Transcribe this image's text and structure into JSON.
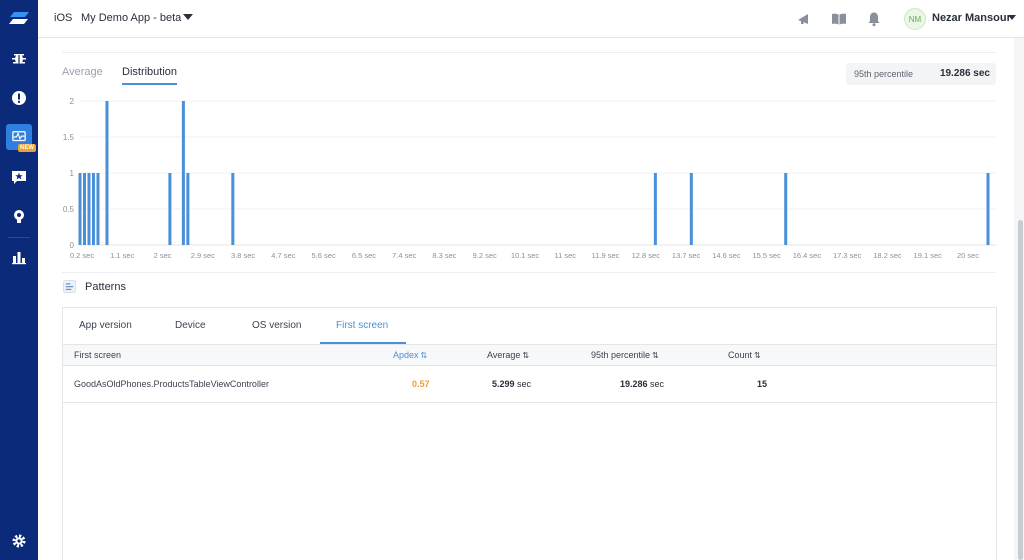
{
  "header": {
    "platform": "iOS",
    "app_name": "My Demo App - beta",
    "user_initials": "NM",
    "user_name": "Nezar Mansour",
    "icons": [
      "announcement-icon",
      "docs-book-icon",
      "notifications-bell-icon"
    ]
  },
  "sidebar": {
    "items": [
      {
        "name": "bugs",
        "icon": "bug-icon"
      },
      {
        "name": "crashes",
        "icon": "exclamation-icon"
      },
      {
        "name": "apm",
        "icon": "performance-monitor-icon",
        "badge": "new",
        "active": true
      },
      {
        "name": "feature-requests",
        "icon": "star-chat-icon"
      },
      {
        "name": "surveys",
        "icon": "lightbulb-icon"
      },
      {
        "name": "analytics",
        "icon": "bar-chart-icon"
      },
      {
        "name": "settings",
        "icon": "gear-icon"
      }
    ]
  },
  "tabs": {
    "average": "Average",
    "distribution": "Distribution"
  },
  "percentile": {
    "label": "95th percentile",
    "value": "19.286 sec"
  },
  "chart_data": {
    "type": "bar",
    "title": "",
    "xlabel": "",
    "ylabel": "",
    "ylim": [
      0,
      2
    ],
    "y_ticks": [
      "0",
      "0.5",
      "1",
      "1.5",
      "2"
    ],
    "x_tick_labels": [
      "0.2 sec",
      "1.1 sec",
      "2 sec",
      "2.9 sec",
      "3.8 sec",
      "4.7 sec",
      "5.6 sec",
      "6.5 sec",
      "7.4 sec",
      "8.3 sec",
      "9.2 sec",
      "10.1 sec",
      "11 sec",
      "11.9 sec",
      "12.8 sec",
      "13.7 sec",
      "14.6 sec",
      "15.5 sec",
      "16.4 sec",
      "17.3 sec",
      "18.2 sec",
      "19.1 sec",
      "20 sec"
    ],
    "x_range": [
      0.2,
      20.4
    ],
    "grid": true,
    "bars": [
      {
        "x": 0.2,
        "value": 1
      },
      {
        "x": 0.3,
        "value": 1
      },
      {
        "x": 0.4,
        "value": 1
      },
      {
        "x": 0.5,
        "value": 1
      },
      {
        "x": 0.6,
        "value": 1
      },
      {
        "x": 0.8,
        "value": 2
      },
      {
        "x": 2.2,
        "value": 1
      },
      {
        "x": 2.5,
        "value": 2
      },
      {
        "x": 2.6,
        "value": 1
      },
      {
        "x": 3.6,
        "value": 1
      },
      {
        "x": 13.0,
        "value": 1
      },
      {
        "x": 13.8,
        "value": 1
      },
      {
        "x": 15.9,
        "value": 1
      },
      {
        "x": 20.4,
        "value": 1
      }
    ]
  },
  "patterns": {
    "title": "Patterns",
    "tabs": [
      "App version",
      "Device",
      "OS version",
      "First screen"
    ],
    "active_tab": 3,
    "columns": {
      "first_screen": "First screen",
      "apdex": "Apdex",
      "average": "Average",
      "p95": "95th percentile",
      "count": "Count"
    },
    "rows": [
      {
        "first_screen": "GoodAsOldPhones.ProductsTableViewController",
        "apdex": "0.57",
        "average_value": "5.299",
        "average_unit": "sec",
        "p95_value": "19.286",
        "p95_unit": "sec",
        "count": "15"
      }
    ]
  }
}
